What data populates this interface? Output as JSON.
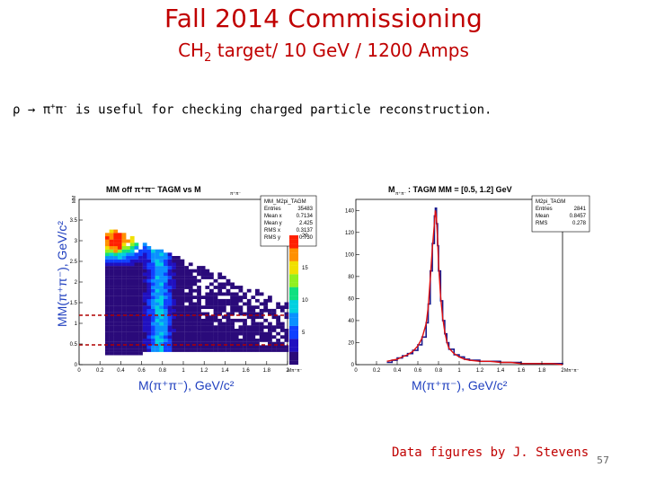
{
  "slide": {
    "title": "Fall 2014 Commissioning",
    "subtitle_pre": "CH",
    "subtitle_sub": "2",
    "subtitle_post": " target/ 10 GeV / 1200 Amps",
    "bullet_pre": "ρ  ",
    "bullet_arrow": "→",
    "bullet_mid": " π",
    "bullet_sup1": "+",
    "bullet_pi2": "π",
    "bullet_sup2": "-",
    "bullet_post": "  is useful for checking charged particle reconstruction.",
    "credit": "Data figures by J. Stevens",
    "page_number": "57"
  },
  "left_plot": {
    "title": "MM off π⁺π⁻ TAGM vs M",
    "title_sub": "π⁺π⁻",
    "stats": {
      "name_label": "MM_M2pi_TAGM",
      "rows": [
        [
          "Entries",
          "35483"
        ],
        [
          "Mean x",
          "0.7134"
        ],
        [
          "Mean y",
          "2.425"
        ],
        [
          "RMS x",
          "0.3137"
        ],
        [
          "RMS y",
          "0.730"
        ]
      ]
    },
    "xlabel": "M(π⁺π⁻), GeV/c²",
    "xlabel_small": "Mπ⁺π⁻",
    "ylabel": "MM(π⁺π⁻), GeV/c²",
    "ylabel_small": "MM",
    "xticks": [
      "0",
      "0.2",
      "0.4",
      "0.6",
      "0.8",
      "1",
      "1.2",
      "1.4",
      "1.6",
      "1.8",
      "2"
    ],
    "yticks": [
      "0",
      "0.5",
      "1",
      "1.5",
      "2",
      "2.5",
      "3",
      "3.5"
    ],
    "zticks": [
      "5",
      "10",
      "15",
      "20"
    ],
    "cut_lines": [
      "0.5",
      "1.2"
    ]
  },
  "right_plot": {
    "title": "M",
    "title_sub": "π⁺π⁻",
    "title_post": ": TAGM MM = [0.5, 1.2] GeV",
    "stats": {
      "name_label": "M2pi_TAGM",
      "rows": [
        [
          "Entries",
          "2841"
        ],
        [
          "Mean",
          "0.8457"
        ],
        [
          "RMS",
          "0.278"
        ]
      ]
    },
    "xlabel": "M(π⁺π⁻), GeV/c²",
    "xlabel_small": "Mπ⁺π⁻",
    "xticks": [
      "0",
      "0.2",
      "0.4",
      "0.6",
      "0.8",
      "1",
      "1.2",
      "1.4",
      "1.6",
      "1.8",
      "2"
    ],
    "yticks": [
      "0",
      "20",
      "40",
      "60",
      "80",
      "100",
      "120",
      "140"
    ]
  },
  "chart_data": [
    {
      "type": "heatmap",
      "title": "MM off π⁺π⁻ TAGM vs Mπ⁺π⁻",
      "xlabel": "M(π⁺π⁻), GeV/c²",
      "ylabel": "MM(π⁺π⁻), GeV/c²",
      "xlim": [
        0,
        2
      ],
      "ylim": [
        0,
        4
      ],
      "zlim": [
        0,
        20
      ],
      "peak_region": {
        "x": 0.3,
        "y": 3.0
      },
      "cut_band": [
        0.5,
        1.2
      ]
    },
    {
      "type": "line",
      "title": "Mπ⁺π⁻: TAGM MM = [0.5, 1.2] GeV",
      "xlabel": "M(π⁺π⁻), GeV/c²",
      "xlim": [
        0,
        2
      ],
      "ylim": [
        0,
        150
      ],
      "series": [
        {
          "name": "data",
          "x": [
            0.3,
            0.35,
            0.4,
            0.45,
            0.5,
            0.55,
            0.6,
            0.64,
            0.68,
            0.7,
            0.72,
            0.74,
            0.76,
            0.77,
            0.78,
            0.79,
            0.8,
            0.82,
            0.84,
            0.86,
            0.88,
            0.9,
            0.95,
            1.0,
            1.05,
            1.1,
            1.2,
            1.3,
            1.4,
            1.5,
            1.6,
            1.7,
            1.8,
            1.9,
            2.0
          ],
          "values": [
            2,
            4,
            6,
            8,
            10,
            13,
            18,
            25,
            38,
            55,
            85,
            110,
            135,
            142,
            128,
            108,
            85,
            58,
            40,
            28,
            20,
            14,
            9,
            7,
            5,
            4,
            3,
            3,
            2,
            2,
            1,
            1,
            1,
            1,
            0
          ]
        },
        {
          "name": "fit",
          "x": [
            0.3,
            0.35,
            0.4,
            0.45,
            0.5,
            0.55,
            0.6,
            0.64,
            0.68,
            0.7,
            0.72,
            0.74,
            0.76,
            0.77,
            0.78,
            0.79,
            0.8,
            0.82,
            0.84,
            0.86,
            0.88,
            0.9,
            0.95,
            1.0,
            1.05,
            1.1,
            1.2,
            1.3,
            1.4,
            1.5,
            1.6,
            1.7,
            1.8,
            1.9,
            2.0
          ],
          "values": [
            3,
            4,
            5,
            7,
            9,
            12,
            17,
            24,
            37,
            52,
            78,
            105,
            128,
            140,
            133,
            115,
            92,
            62,
            43,
            30,
            21,
            15,
            10,
            7,
            5,
            4,
            3,
            3,
            2,
            2,
            1,
            1,
            1,
            1,
            0
          ]
        }
      ]
    }
  ]
}
